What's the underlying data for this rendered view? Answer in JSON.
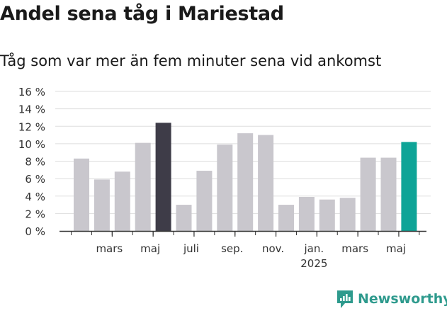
{
  "title": "Andel sena tåg i Mariestad",
  "subtitle": "Tåg som var mer än fem minuter sena vid ankomst",
  "brand": {
    "name": "Newsworthy",
    "icon": "newsworthy-logo-icon",
    "color": "#2e9a8d"
  },
  "colors": {
    "default_bar": "#c9c7cd",
    "highlight_past": "#3e3c48",
    "highlight_latest": "#0ea497",
    "grid": "#dddddd",
    "axis": "#333333"
  },
  "chart_data": {
    "type": "bar",
    "ylim": [
      0,
      16
    ],
    "yticks": [
      "0 %",
      "2 %",
      "4 %",
      "6 %",
      "8 %",
      "10 %",
      "12 %",
      "14 %",
      "16 %"
    ],
    "ytick_values": [
      0,
      2,
      4,
      6,
      8,
      10,
      12,
      14,
      16
    ],
    "values": [
      8.3,
      5.9,
      6.8,
      10.1,
      12.4,
      3.0,
      6.9,
      9.9,
      11.2,
      11.0,
      3.0,
      3.9,
      3.6,
      3.8,
      8.4,
      8.4,
      10.2
    ],
    "highlight": [
      "",
      "",
      "",
      "",
      "past",
      "",
      "",
      "",
      "",
      "",
      "",
      "",
      "",
      "",
      "",
      "",
      "latest"
    ],
    "xticks": [
      {
        "label": "mars",
        "index": 1
      },
      {
        "label": "maj",
        "index": 3
      },
      {
        "label": "juli",
        "index": 5
      },
      {
        "label": "sep.",
        "index": 7
      },
      {
        "label": "nov.",
        "index": 9
      },
      {
        "label": "jan.",
        "sublabel": "2025",
        "index": 11
      },
      {
        "label": "mars",
        "index": 13
      },
      {
        "label": "maj",
        "index": 15
      }
    ],
    "grid": true,
    "legend": "none"
  }
}
